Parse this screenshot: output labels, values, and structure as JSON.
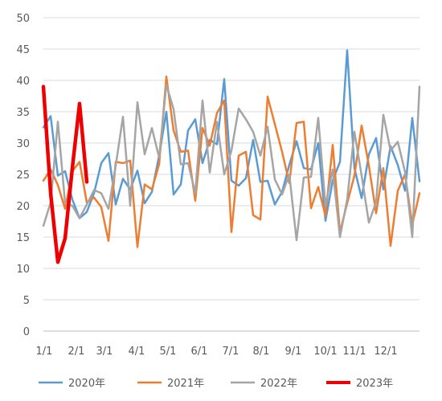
{
  "chart_data": {
    "type": "line",
    "y_ticks": [
      "0",
      "5",
      "10",
      "15",
      "20",
      "25",
      "30",
      "35",
      "40",
      "45",
      "50"
    ],
    "ylim": [
      0,
      50
    ],
    "x_ticks": [
      "1/1",
      "2/1",
      "3/1",
      "4/1",
      "5/1",
      "6/1",
      "7/1",
      "8/1",
      "9/1",
      "10/1",
      "11/1",
      "12/1"
    ],
    "grid": "horizontal",
    "legend_position": "bottom",
    "series": [
      {
        "name": "2020年",
        "color": "#5b9bd5",
        "width": 2.5,
        "values": [
          32.5,
          34.3,
          24.8,
          25.5,
          21,
          18,
          19,
          22,
          26.8,
          28.4,
          20.2,
          24.3,
          22.6,
          25.6,
          20.4,
          22.2,
          28,
          35,
          21.8,
          23.4,
          32,
          33.8,
          26.8,
          30.5,
          29.8,
          40.2,
          24,
          23.2,
          24.4,
          30.5,
          23.8,
          24,
          20.2,
          22.2,
          26.5,
          30.3,
          26,
          25.8,
          30,
          17.6,
          24,
          27,
          44.8,
          26,
          21.2,
          28.2,
          30.8,
          22.6,
          29.5,
          26.5,
          22.4,
          34,
          23.9
        ]
      },
      {
        "name": "2021年",
        "color": "#ed7d31",
        "width": 2.5,
        "values": [
          24,
          25.8,
          23.3,
          19.5,
          25.5,
          27,
          20.5,
          21.3,
          19.8,
          14.4,
          27,
          26.8,
          27.2,
          13.4,
          23.4,
          22.6,
          26.6,
          40.6,
          32,
          28.6,
          28.8,
          20.8,
          32.4,
          29.6,
          34.8,
          36.8,
          15.8,
          28,
          28.6,
          18.5,
          17.8,
          37.4,
          33,
          28.6,
          23.6,
          33.2,
          33.4,
          19.6,
          23,
          18.4,
          29.7,
          15.8,
          20.4,
          24.8,
          32.8,
          26.4,
          18.8,
          26,
          13.6,
          22.4,
          25,
          17,
          22
        ]
      },
      {
        "name": "2022年",
        "color": "#a5a5a5",
        "width": 2.5,
        "values": [
          16.8,
          20.5,
          33.4,
          20.4,
          20,
          18,
          20.2,
          22.5,
          22,
          19.5,
          26.4,
          34.2,
          20,
          36.5,
          28.2,
          32.4,
          27.7,
          39.3,
          35.4,
          26.6,
          26.8,
          22,
          36.8,
          25.3,
          33.4,
          25,
          28.8,
          35.5,
          33.8,
          31.8,
          28,
          32.6,
          24.2,
          21.8,
          25,
          14.5,
          24.5,
          24.6,
          34,
          20,
          25.8,
          15,
          21,
          31.8,
          24.8,
          17.3,
          20.6,
          34.5,
          28.8,
          30.2,
          25.4,
          15,
          39
        ]
      },
      {
        "name": "2023年",
        "color": "#ee0000",
        "width": 4.5,
        "values": [
          39,
          22,
          11,
          14.8,
          26,
          36.3,
          23.8
        ]
      }
    ]
  }
}
